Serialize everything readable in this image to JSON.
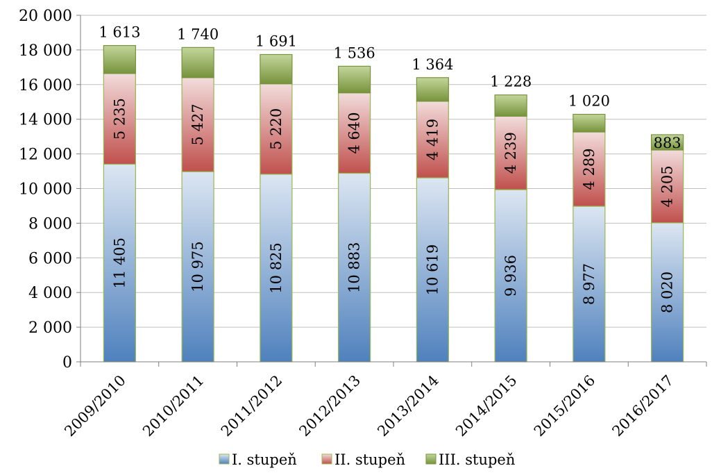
{
  "chart_data": {
    "type": "bar",
    "stacked": true,
    "title": "",
    "xlabel": "",
    "ylabel": "",
    "categories": [
      "2009/2010",
      "2010/2011",
      "2011/2012",
      "2012/2013",
      "2013/2014",
      "2014/2015",
      "2015/2016",
      "2016/2017"
    ],
    "series": [
      {
        "name": "I. stupeň",
        "values": [
          11405,
          10975,
          10825,
          10883,
          10619,
          9936,
          8977,
          8020
        ],
        "labels": [
          "11 405",
          "10 975",
          "10 825",
          "10 883",
          "10 619",
          "9 936",
          "8 977",
          "8 020"
        ],
        "color": "#4f81bd",
        "color_light": "#dce6f2",
        "border": "#98b954"
      },
      {
        "name": "II. stupeň",
        "values": [
          5235,
          5427,
          5220,
          4640,
          4419,
          4239,
          4289,
          4205
        ],
        "labels": [
          "5 235",
          "5 427",
          "5 220",
          "4 640",
          "4 419",
          "4 239",
          "4 289",
          "4 205"
        ],
        "color": "#c0504d",
        "color_light": "#f2dcdb",
        "border": "#98b954"
      },
      {
        "name": "III. stupeň",
        "values": [
          1613,
          1740,
          1691,
          1536,
          1364,
          1228,
          1020,
          883
        ],
        "labels": [
          "1 613",
          "1 740",
          "1 691",
          "1 536",
          "1 364",
          "1 228",
          "1 020",
          "883"
        ],
        "color": "#77933c",
        "color_light": "#c3d69b",
        "border": "#77933c"
      }
    ],
    "ylim": [
      0,
      20000
    ],
    "yticks": [
      0,
      2000,
      4000,
      6000,
      8000,
      10000,
      12000,
      14000,
      16000,
      18000,
      20000
    ],
    "ytick_labels": [
      "0",
      "2 000",
      "4 000",
      "6 000",
      "8 000",
      "10 000",
      "12 000",
      "14 000",
      "16 000",
      "18 000",
      "20 000"
    ],
    "grid": true,
    "legend_position": "bottom",
    "gridline_color": "#bfbfbf",
    "axis_color": "#7f7f7f"
  }
}
